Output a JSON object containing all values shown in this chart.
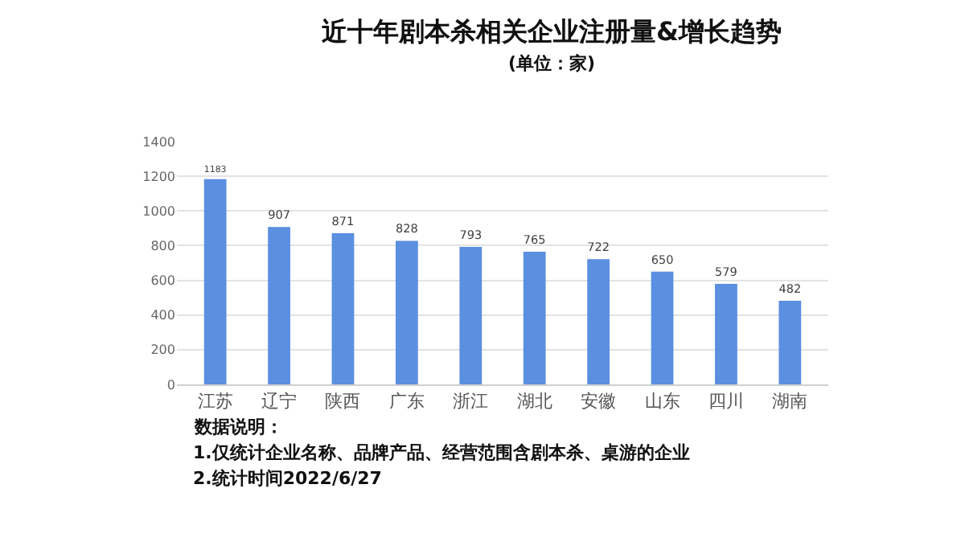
{
  "chart_data": {
    "type": "bar",
    "title": "近十年剧本杀相关企业注册量&增长趋势",
    "subtitle": "(单位：家)",
    "categories": [
      "江苏",
      "辽宁",
      "陕西",
      "广东",
      "浙江",
      "湖北",
      "安徽",
      "山东",
      "四川",
      "湖南"
    ],
    "values": [
      1183,
      907,
      871,
      828,
      793,
      765,
      722,
      650,
      579,
      482
    ],
    "color": "#5b8fe0",
    "ylim": [
      0,
      1400
    ],
    "yticks": [
      0,
      200,
      400,
      600,
      800,
      1000,
      1200,
      1400
    ],
    "grid": "y",
    "data_labels": true,
    "annotations": [
      "数据说明：",
      "1.仅统计企业名称、品牌产品、经营范围含剧本杀、桌游的企业",
      "2.统计时间2022/6/27"
    ]
  }
}
